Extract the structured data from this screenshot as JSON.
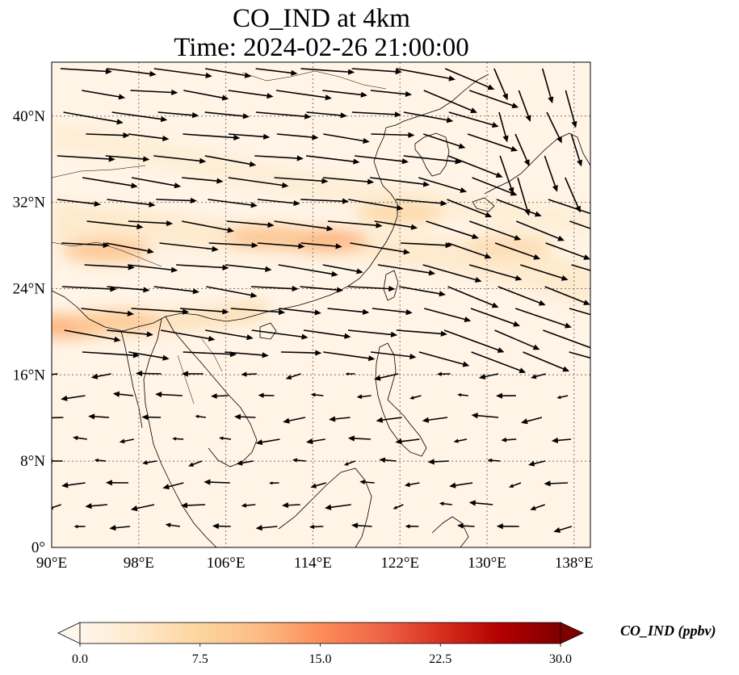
{
  "title": {
    "line1": "CO_IND at 4km",
    "line2": "Time: 2024-02-26 21:00:00"
  },
  "map": {
    "projection": "PlateCarree",
    "lon_range": [
      90,
      139.5
    ],
    "lat_range": [
      0,
      45
    ],
    "gridlines": "dotted",
    "lon_ticks": [
      {
        "value": 90,
        "label": "90°E"
      },
      {
        "value": 98,
        "label": "98°E"
      },
      {
        "value": 106,
        "label": "106°E"
      },
      {
        "value": 114,
        "label": "114°E"
      },
      {
        "value": 122,
        "label": "122°E"
      },
      {
        "value": 130,
        "label": "130°E"
      },
      {
        "value": 138,
        "label": "138°E"
      }
    ],
    "lat_ticks": [
      {
        "value": 0,
        "label": "0°"
      },
      {
        "value": 8,
        "label": "8°N"
      },
      {
        "value": 16,
        "label": "16°N"
      },
      {
        "value": 24,
        "label": "24°N"
      },
      {
        "value": 32,
        "label": "32°N"
      },
      {
        "value": 40,
        "label": "40°N"
      }
    ],
    "colormap": "OrRd",
    "field_hotspots_ppbv": [
      {
        "lon": 115.0,
        "lat": 28.5,
        "value": 12
      },
      {
        "lon": 110.0,
        "lat": 28.8,
        "value": 10
      },
      {
        "lon": 95.0,
        "lat": 27.5,
        "value": 10
      },
      {
        "lon": 91.0,
        "lat": 20.5,
        "value": 12
      },
      {
        "lon": 96.0,
        "lat": 21.0,
        "value": 9
      },
      {
        "lon": 122.0,
        "lat": 31.0,
        "value": 7
      },
      {
        "lon": 132.0,
        "lat": 28.0,
        "value": 6
      }
    ],
    "wind_vectors": "black arrows, westerlies north of 18°N, weak easterlies to the south"
  },
  "colorbar": {
    "min": 0.0,
    "max": 30.0,
    "extend": "both",
    "ticks": [
      "0.0",
      "7.5",
      "15.0",
      "22.5",
      "30.0"
    ],
    "label": "CO_IND (ppbv)",
    "colors": [
      "#fff7ec",
      "#fee8c8",
      "#fdd49e",
      "#fdbb84",
      "#fc8d59",
      "#ef6548",
      "#d7301f",
      "#b30000",
      "#7f0000"
    ]
  }
}
